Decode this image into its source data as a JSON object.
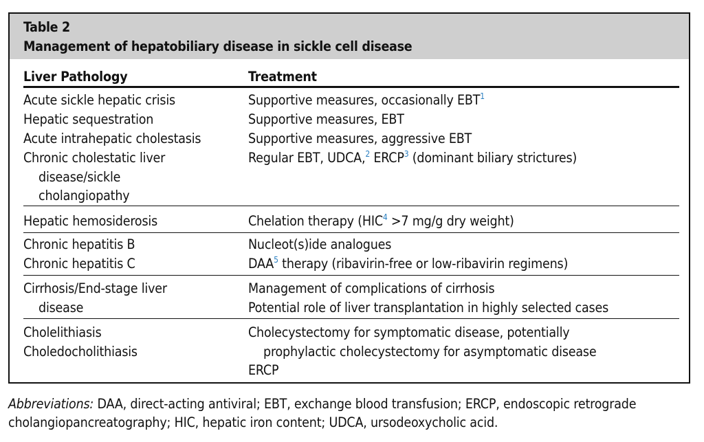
{
  "table": {
    "label": "Table 2",
    "title": "Management of hepatobiliary disease in sickle cell disease",
    "headers": [
      "Liver Pathology",
      "Treatment"
    ],
    "rows": [
      {
        "pathology": "Acute sickle hepatic crisis",
        "treatment": "Supportive measures, occasionally EBT",
        "sup": "1"
      },
      {
        "pathology": "Hepatic sequestration",
        "treatment": "Supportive measures, EBT"
      },
      {
        "pathology": "Acute intrahepatic cholestasis",
        "treatment": "Supportive measures, aggressive EBT"
      },
      {
        "pathology": [
          "Chronic cholestatic liver",
          "disease/sickle",
          "cholangiopathy"
        ],
        "treatment": [
          "Regular EBT, UDCA,",
          "2",
          " ERCP",
          "3",
          " (dominant biliary strictures)"
        ]
      },
      {
        "pathology": "Hepatic hemosiderosis",
        "treatment": [
          "Chelation therapy (HIC",
          "4",
          " >7 mg/g dry weight)"
        ]
      },
      {
        "pathology": "Chronic hepatitis B",
        "treatment": "Nucleot(s)ide analogues"
      },
      {
        "pathology": "Chronic hepatitis C",
        "treatment": [
          "DAA",
          "5",
          " therapy (ribavirin-free or low-ribavirin regimens)"
        ]
      },
      {
        "pathology": [
          "Cirrhosis/End-stage liver",
          "disease"
        ],
        "treatment": [
          "Management of complications of cirrhosis",
          "Potential role of liver transplantation in highly selected cases"
        ]
      },
      {
        "pathology": [
          "Cholelithiasis",
          "Choledocholithiasis"
        ],
        "treatment": [
          "Cholecystectomy for symptomatic disease, potentially",
          "prophylactic cholecystectomy for asymptomatic disease",
          "ERCP"
        ]
      }
    ]
  },
  "footnote": {
    "label": "Abbreviations:",
    "text": " DAA, direct-acting antiviral; EBT, exchange blood transfusion; ERCP, endoscopic retrograde cholangiopancreatography; HIC, hepatic iron content; UDCA, ursodeoxycholic acid."
  },
  "colors": {
    "superscript": "#2a7fc1",
    "header_bg": "#cfcfcf"
  }
}
